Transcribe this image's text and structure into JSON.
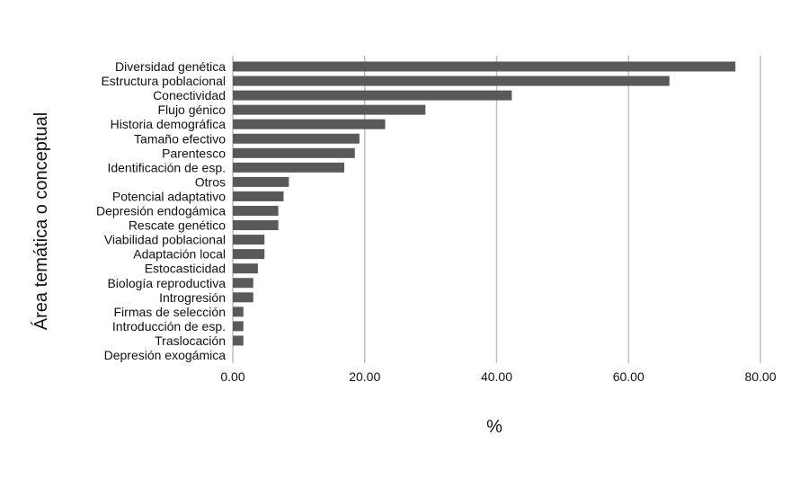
{
  "chart_data": {
    "type": "bar",
    "orientation": "horizontal",
    "title": "",
    "xlabel": "%",
    "ylabel": "Área temática o conceptual",
    "xlim": [
      0,
      80
    ],
    "x_ticks": [
      "0.00",
      "20.00",
      "40.00",
      "60.00",
      "80.00"
    ],
    "grid": "vertical gridlines",
    "legend": "none",
    "bar_color": "#595959",
    "grid_color": "#bfbfbf",
    "categories": [
      "Diversidad genética",
      "Estructura poblacional",
      "Conectividad",
      "Flujo génico",
      "Historia demográfica",
      "Tamaño efectivo",
      "Parentesco",
      "Identificación de esp.",
      "Otros",
      "Potencial adaptativo",
      "Depresión endogámica",
      "Rescate genético",
      "Viabilidad poblacional",
      "Adaptación local",
      "Estocasticidad",
      "Biología reproductiva",
      "Introgresión",
      "Firmas de selección",
      "Introducción de esp.",
      "Traslocación",
      "Depresión exogámica"
    ],
    "values": [
      76.2,
      66.2,
      42.3,
      29.2,
      23.1,
      19.2,
      18.5,
      16.9,
      8.5,
      7.7,
      6.9,
      6.9,
      4.8,
      4.8,
      3.8,
      3.1,
      3.1,
      1.6,
      1.6,
      1.6,
      0
    ]
  }
}
